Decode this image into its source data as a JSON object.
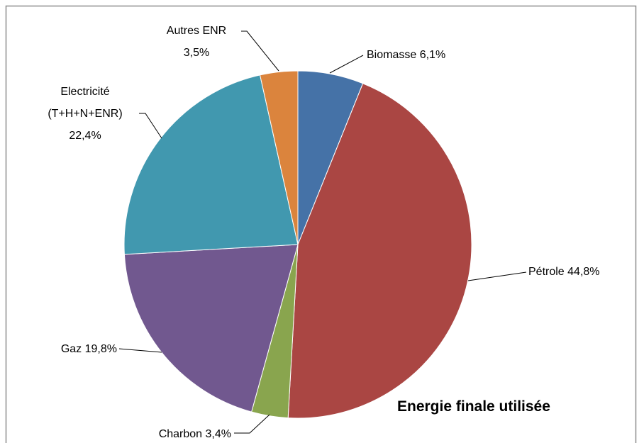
{
  "chart_data": {
    "type": "pie",
    "title": "Energie finale utilisée",
    "categories": [
      "Biomasse",
      "Pétrole",
      "Charbon",
      "Gaz",
      "Electricité (T+H+N+ENR)",
      "Autres ENR"
    ],
    "values": [
      6.1,
      44.8,
      3.4,
      19.8,
      22.4,
      3.5
    ],
    "value_labels": [
      "6,1%",
      "44,8%",
      "3,4%",
      "19,8%",
      "22,4%",
      "3,5%"
    ],
    "colors": [
      "#4572a7",
      "#aa4643",
      "#89a54e",
      "#71588f",
      "#4198af",
      "#db843d"
    ]
  }
}
